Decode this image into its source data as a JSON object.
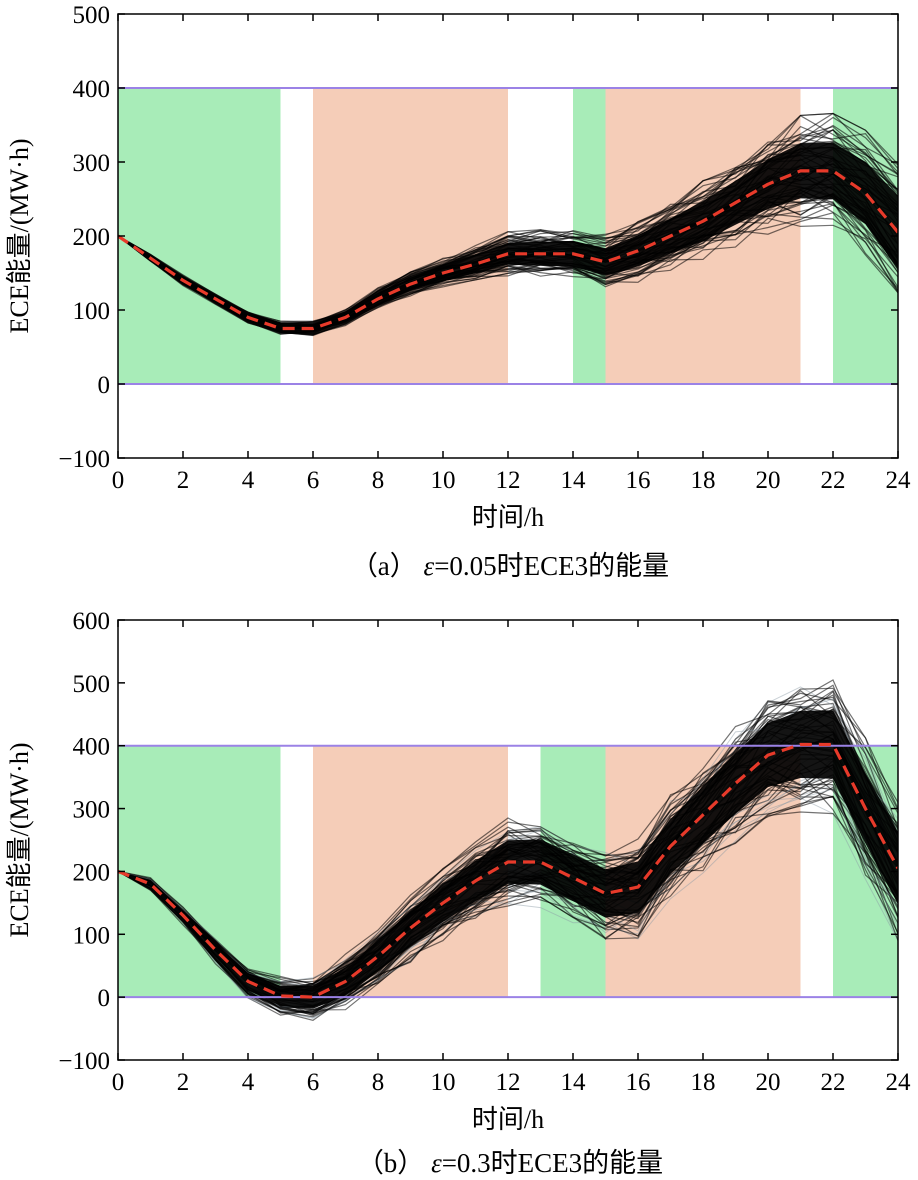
{
  "chart_data": [
    {
      "type": "line",
      "panel": "a",
      "caption_prefix": "（a）",
      "caption_eps": "ε",
      "caption_rest": "=0.05时ECE3的能量",
      "xlabel": "时间/h",
      "ylabel": "ECE能量/(MW·h)",
      "xlim": [
        0,
        24
      ],
      "ylim": [
        -100,
        500
      ],
      "xticks": [
        0,
        2,
        4,
        6,
        8,
        10,
        12,
        14,
        16,
        18,
        20,
        22,
        24
      ],
      "yticks": [
        -100,
        0,
        100,
        200,
        300,
        400,
        500
      ],
      "limits": [
        0,
        400
      ],
      "limit_color": "#9b82e6",
      "regions": [
        {
          "x0": 0,
          "x1": 5,
          "kind": "green"
        },
        {
          "x0": 6,
          "x1": 12,
          "kind": "salmon"
        },
        {
          "x0": 14,
          "x1": 15,
          "kind": "green"
        },
        {
          "x0": 15,
          "x1": 21,
          "kind": "salmon"
        },
        {
          "x0": 22,
          "x1": 24,
          "kind": "green"
        }
      ],
      "region_colors": {
        "green": "#a8ecb8",
        "salmon": "#f5cdb8"
      },
      "mean_series": {
        "name": "mean",
        "x": [
          0,
          1,
          2,
          3,
          4,
          5,
          6,
          7,
          8,
          9,
          10,
          11,
          12,
          13,
          14,
          15,
          16,
          17,
          18,
          19,
          20,
          21,
          22,
          23,
          24
        ],
        "values": [
          200,
          170,
          140,
          115,
          90,
          75,
          75,
          90,
          115,
          135,
          150,
          162,
          176,
          176,
          176,
          165,
          180,
          200,
          220,
          245,
          270,
          288,
          288,
          258,
          205
        ]
      },
      "mean_color": "#e83a2a",
      "band_halfwidth": [
        0,
        4,
        6,
        6,
        7,
        8,
        8,
        10,
        12,
        14,
        16,
        20,
        24,
        26,
        28,
        30,
        34,
        38,
        44,
        48,
        54,
        60,
        62,
        68,
        80
      ],
      "ensemble_color": "#000000",
      "ensemble_count": 60
    },
    {
      "type": "line",
      "panel": "b",
      "caption_prefix": "（b）",
      "caption_eps": "ε",
      "caption_rest": "=0.3时ECE3的能量",
      "xlabel": "时间/h",
      "ylabel": "ECE能量/(MW·h)",
      "xlim": [
        0,
        24
      ],
      "ylim": [
        -100,
        600
      ],
      "xticks": [
        0,
        2,
        4,
        6,
        8,
        10,
        12,
        14,
        16,
        18,
        20,
        22,
        24
      ],
      "yticks": [
        -100,
        0,
        100,
        200,
        300,
        400,
        500,
        600
      ],
      "limits": [
        0,
        400
      ],
      "limit_color": "#9b82e6",
      "regions": [
        {
          "x0": 0,
          "x1": 5,
          "kind": "green"
        },
        {
          "x0": 6,
          "x1": 12,
          "kind": "salmon"
        },
        {
          "x0": 13,
          "x1": 15,
          "kind": "green"
        },
        {
          "x0": 15,
          "x1": 21,
          "kind": "salmon"
        },
        {
          "x0": 22,
          "x1": 24,
          "kind": "green"
        }
      ],
      "region_colors": {
        "green": "#a8ecb8",
        "salmon": "#f5cdb8"
      },
      "mean_series": {
        "name": "mean",
        "x": [
          0,
          1,
          2,
          3,
          4,
          5,
          6,
          7,
          8,
          9,
          10,
          11,
          12,
          13,
          14,
          15,
          16,
          17,
          18,
          19,
          20,
          21,
          22,
          23,
          24
        ],
        "values": [
          200,
          180,
          130,
          75,
          25,
          2,
          0,
          25,
          65,
          110,
          150,
          185,
          215,
          215,
          190,
          165,
          175,
          240,
          290,
          340,
          385,
          402,
          402,
          300,
          205
        ]
      },
      "mean_color": "#e83a2a",
      "band_halfwidth": [
        0,
        8,
        12,
        18,
        22,
        26,
        30,
        36,
        40,
        44,
        48,
        52,
        56,
        58,
        60,
        62,
        66,
        70,
        74,
        78,
        82,
        86,
        88,
        90,
        92
      ],
      "ensemble_color": "#000000",
      "ensemble_count": 70
    }
  ]
}
